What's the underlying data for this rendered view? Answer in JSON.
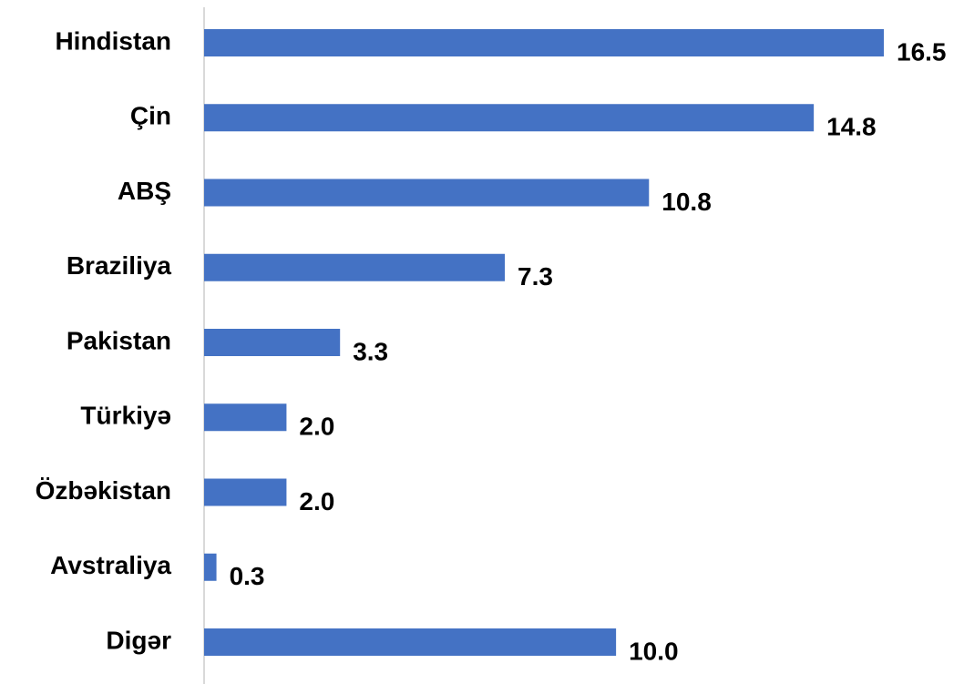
{
  "chart_data": {
    "type": "bar",
    "orientation": "horizontal",
    "categories": [
      "Hindistan",
      "Çin",
      "ABŞ",
      "Braziliya",
      "Pakistan",
      "Türkiyə",
      "Özbəkistan",
      "Avstraliya",
      "Digər"
    ],
    "values": [
      16.5,
      14.8,
      10.8,
      7.3,
      3.3,
      2.0,
      2.0,
      0.3,
      10.0
    ],
    "value_labels": [
      "16.5",
      "14.8",
      "10.8",
      "7.3",
      "3.3",
      "2.0",
      "2.0",
      "0.3",
      "10.0"
    ],
    "title": "",
    "xlabel": "",
    "ylabel": "",
    "xlim": [
      0,
      16.5
    ],
    "grid": false,
    "legend": "none",
    "bar_color": "#4472C4",
    "axis_color": "#D9D9D9"
  }
}
